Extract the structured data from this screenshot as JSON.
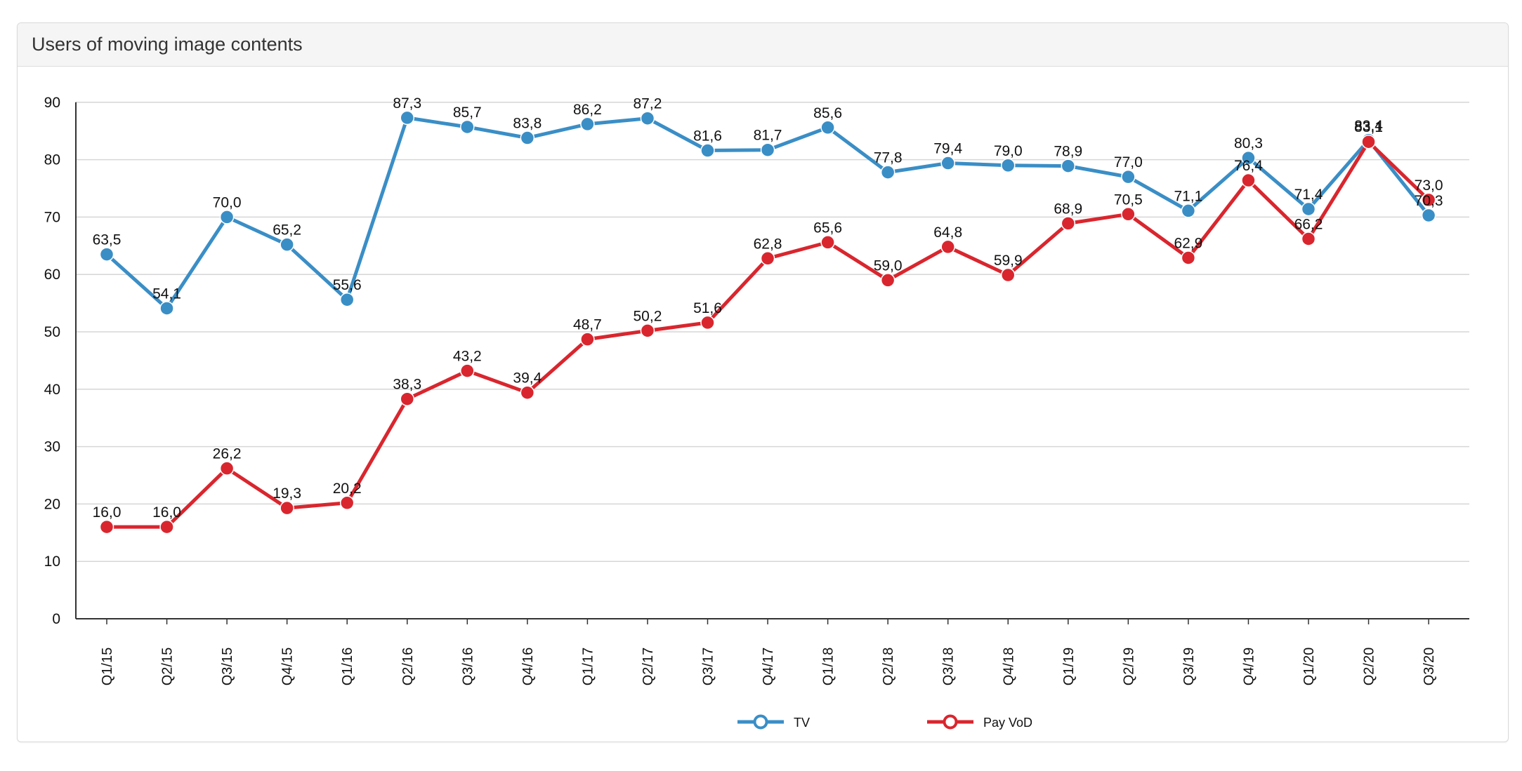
{
  "panel": {
    "title": "Users of moving image contents"
  },
  "chart_data": {
    "type": "line",
    "x": [
      "Q1/15",
      "Q2/15",
      "Q3/15",
      "Q4/15",
      "Q1/16",
      "Q2/16",
      "Q3/16",
      "Q4/16",
      "Q1/17",
      "Q2/17",
      "Q3/17",
      "Q4/17",
      "Q1/18",
      "Q2/18",
      "Q3/18",
      "Q4/18",
      "Q1/19",
      "Q2/19",
      "Q3/19",
      "Q4/19",
      "Q1/20",
      "Q2/20",
      "Q3/20"
    ],
    "series": [
      {
        "name": "TV",
        "color": "#3a8ec6",
        "values": [
          63.5,
          54.1,
          70.0,
          65.2,
          55.6,
          87.3,
          85.7,
          83.8,
          86.2,
          87.2,
          81.6,
          81.7,
          85.6,
          77.8,
          79.4,
          79.0,
          78.9,
          77.0,
          71.1,
          80.3,
          71.4,
          83.4,
          70.3
        ]
      },
      {
        "name": "Pay VoD",
        "color": "#d9262e",
        "values": [
          16.0,
          16.0,
          26.2,
          19.3,
          20.2,
          38.3,
          43.2,
          39.4,
          48.7,
          50.2,
          51.6,
          62.8,
          65.6,
          59.0,
          64.8,
          59.9,
          68.9,
          70.5,
          62.9,
          76.4,
          66.2,
          83.1,
          73.0
        ]
      }
    ],
    "ylim": [
      0,
      90
    ],
    "yticks": [
      0,
      10,
      20,
      30,
      40,
      50,
      60,
      70,
      80,
      90
    ],
    "grid": true,
    "legend_position": "bottom-center",
    "decimal_separator": ","
  }
}
